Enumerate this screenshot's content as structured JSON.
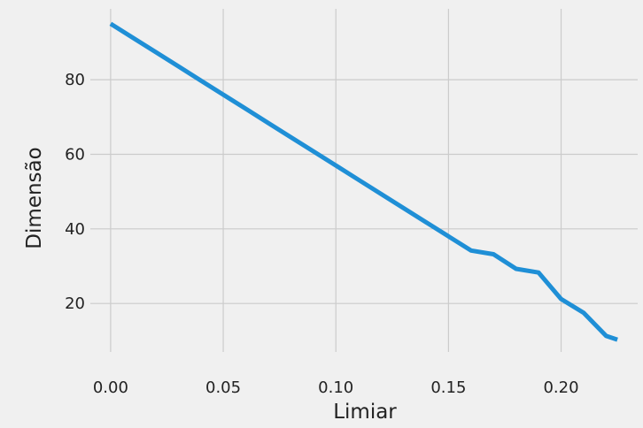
{
  "chart_data": {
    "type": "line",
    "xlabel": "Limiar",
    "ylabel": "Dimensão",
    "xlim": [
      -0.009,
      0.234
    ],
    "ylim": [
      7,
      99
    ],
    "xticks": [
      0.0,
      0.05,
      0.1,
      0.15,
      0.2
    ],
    "xtick_labels": [
      "0.00",
      "0.05",
      "0.10",
      "0.15",
      "0.20"
    ],
    "yticks": [
      20,
      40,
      60,
      80
    ],
    "ytick_labels": [
      "20",
      "40",
      "60",
      "80"
    ],
    "grid": true,
    "legend": "none",
    "series": [
      {
        "x": [
          0.0,
          0.01,
          0.02,
          0.03,
          0.04,
          0.05,
          0.06,
          0.07,
          0.08,
          0.09,
          0.1,
          0.11,
          0.12,
          0.13,
          0.14,
          0.15,
          0.16,
          0.17,
          0.18,
          0.19,
          0.2,
          0.21,
          0.22,
          0.225
        ],
        "y": [
          95,
          91.2,
          87.4,
          83.6,
          79.8,
          76,
          72.2,
          68.4,
          64.6,
          60.8,
          57,
          53.2,
          49.4,
          45.6,
          41.8,
          38,
          34.2,
          33.2,
          29.3,
          28.3,
          21.2,
          17.5,
          11.3,
          10.3
        ],
        "color": "#1f8fd6"
      }
    ]
  },
  "colors": {
    "background": "#f0f0f0",
    "grid": "#cbcbcb",
    "line": "#1f8fd6",
    "text": "#222222"
  }
}
